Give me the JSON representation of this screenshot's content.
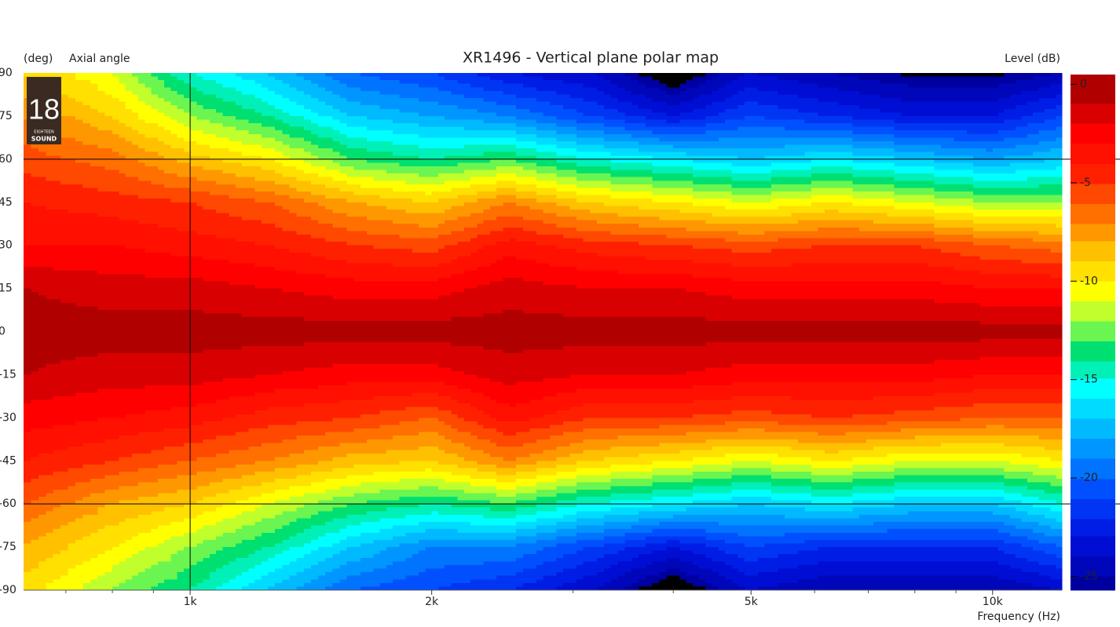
{
  "chart_data": {
    "type": "heatmap",
    "title": "XR1496 - Vertical plane polar map",
    "y_unit": "(deg)",
    "y_label": "Axial angle",
    "colorbar_label": "Level  (dB)",
    "x_label": "Frequency  (Hz)",
    "logo": {
      "number": "18",
      "small": "EIGHTEEN",
      "brand": "SOUND"
    },
    "x_scale": "log",
    "x": [
      620,
      800,
      1000,
      1250,
      1600,
      2000,
      2500,
      3150,
      4000,
      5000,
      6300,
      8000,
      10000,
      12200
    ],
    "y": [
      90,
      75,
      60,
      45,
      30,
      15,
      0,
      -15,
      -30,
      -45,
      -60,
      -75,
      -90
    ],
    "z": [
      [
        -9,
        -11,
        -15,
        -17,
        -20,
        -21,
        -23,
        -24,
        -27,
        -24,
        -25,
        -26,
        -26,
        -25
      ],
      [
        -7,
        -9,
        -12,
        -14,
        -17,
        -18,
        -19,
        -21,
        -23,
        -21,
        -22,
        -23,
        -23,
        -21
      ],
      [
        -5.5,
        -6.5,
        -8.5,
        -10,
        -13,
        -14,
        -13,
        -15,
        -16,
        -17,
        -16,
        -17,
        -18,
        -17
      ],
      [
        -4,
        -4.5,
        -5,
        -6,
        -8,
        -9,
        -7,
        -9,
        -10,
        -11,
        -10,
        -11,
        -12,
        -12
      ],
      [
        -3,
        -3,
        -3.5,
        -4,
        -5,
        -5.5,
        -3.5,
        -4.5,
        -5,
        -5.5,
        -5,
        -5,
        -6,
        -6.5
      ],
      [
        -1,
        -1.5,
        -1.5,
        -2,
        -2.5,
        -2.5,
        -1.5,
        -2,
        -2,
        -2.5,
        -2.5,
        -2.5,
        -3,
        -3
      ],
      [
        -0.5,
        -0.5,
        -0.5,
        -0.5,
        -0.5,
        -0.5,
        -0.5,
        -0.5,
        -0.5,
        -0.5,
        -0.5,
        -0.5,
        -0.5,
        -0.5
      ],
      [
        -1,
        -1.5,
        -1.5,
        -2,
        -2.5,
        -2.5,
        -1.5,
        -2,
        -2,
        -2.5,
        -2.5,
        -2.5,
        -3,
        -3
      ],
      [
        -2.5,
        -3,
        -3.5,
        -4.5,
        -5,
        -6,
        -3.5,
        -5,
        -5,
        -5.5,
        -5,
        -5.5,
        -6,
        -6
      ],
      [
        -4,
        -5,
        -6,
        -7,
        -8.5,
        -9,
        -7,
        -9,
        -10,
        -11,
        -10,
        -11,
        -11,
        -10
      ],
      [
        -6,
        -8,
        -9,
        -11,
        -13,
        -14,
        -13,
        -15,
        -16,
        -17,
        -16,
        -17,
        -17,
        -15
      ],
      [
        -8,
        -10,
        -12,
        -14,
        -17,
        -19,
        -19,
        -21,
        -23,
        -21,
        -22,
        -22,
        -22,
        -20
      ],
      [
        -9.5,
        -12,
        -14,
        -17,
        -20,
        -21,
        -22,
        -24,
        -27,
        -24,
        -25,
        -25,
        -25,
        -24
      ]
    ],
    "xlim": [
      620,
      12200
    ],
    "ylim": [
      -90,
      90
    ],
    "xticks": [
      {
        "value": 1000,
        "label": "1k"
      },
      {
        "value": 2000,
        "label": "2k"
      },
      {
        "value": 5000,
        "label": "5k"
      },
      {
        "value": 10000,
        "label": "10k"
      }
    ],
    "xminor": [
      700,
      800,
      900,
      3000,
      4000,
      6000,
      7000,
      8000,
      9000
    ],
    "yticks": [
      90,
      75,
      60,
      45,
      30,
      15,
      0,
      -15,
      -30,
      -45,
      -60,
      -75,
      -90
    ],
    "xgrid": [
      1000
    ],
    "ygrid": [
      60,
      -60
    ],
    "clim": [
      -25.7,
      0.5
    ],
    "cticks": [
      0,
      -5,
      -10,
      -15,
      -20,
      -25
    ],
    "colormap": [
      {
        "value": 0,
        "color": "#b00000"
      },
      {
        "value": -2,
        "color": "#ff0000"
      },
      {
        "value": -4,
        "color": "#ff2000"
      },
      {
        "value": -6,
        "color": "#ff7000"
      },
      {
        "value": -8,
        "color": "#ffc000"
      },
      {
        "value": -10,
        "color": "#ffff00"
      },
      {
        "value": -11.5,
        "color": "#a0ff40"
      },
      {
        "value": -13,
        "color": "#00e070"
      },
      {
        "value": -15,
        "color": "#00ffff"
      },
      {
        "value": -17.5,
        "color": "#00a8ff"
      },
      {
        "value": -20,
        "color": "#0050ff"
      },
      {
        "value": -22.5,
        "color": "#0010e0"
      },
      {
        "value": -25,
        "color": "#0000a0"
      },
      {
        "value": -25.7,
        "color": "#000080"
      }
    ],
    "under_color": "#000000"
  }
}
